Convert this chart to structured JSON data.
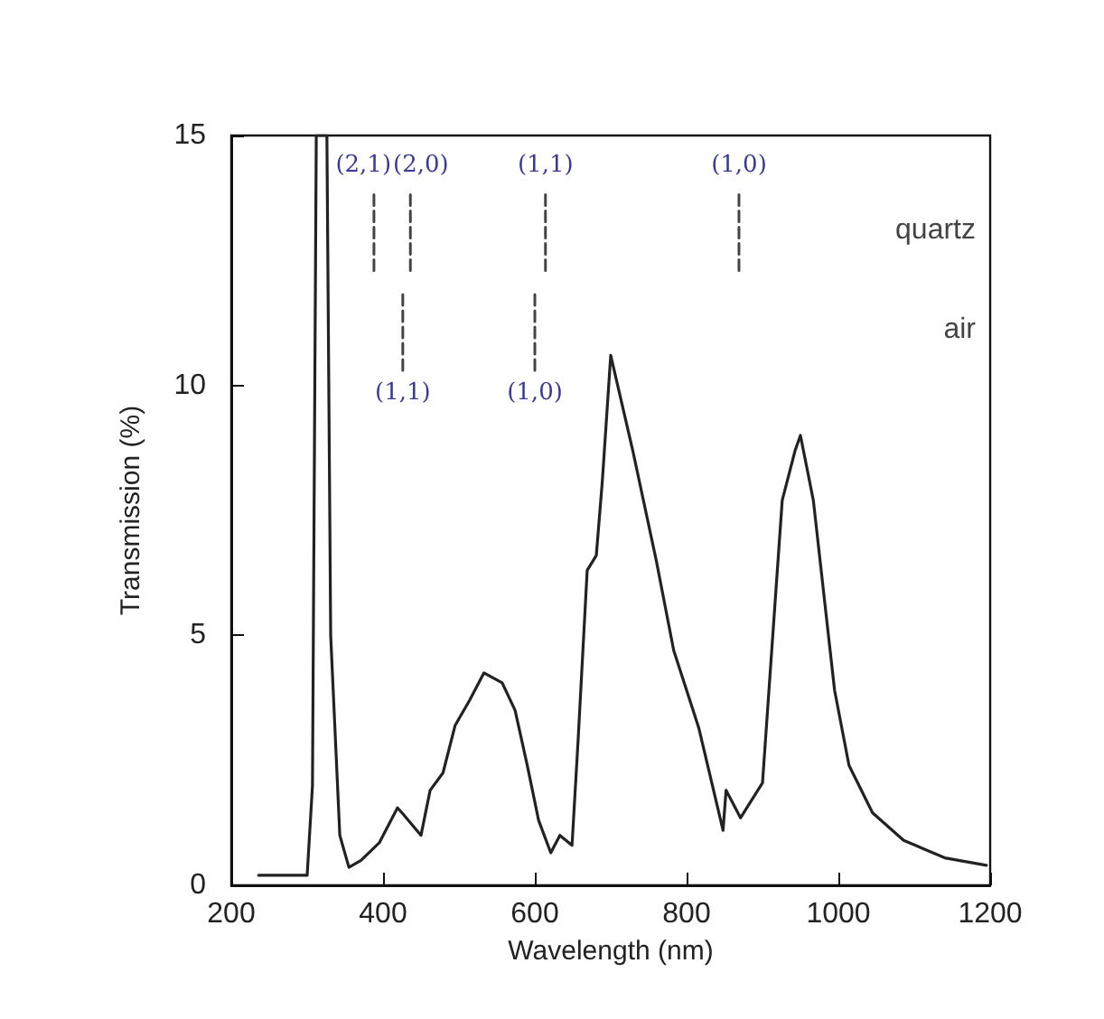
{
  "chart_data": {
    "type": "line",
    "xlabel": "Wavelength (nm)",
    "ylabel": "Transmission (%)",
    "xlim": [
      200,
      1200
    ],
    "xticks": [
      200,
      400,
      600,
      800,
      1000,
      1200
    ],
    "ylim": [
      0,
      15
    ],
    "yticks": [
      0,
      5,
      10,
      15
    ],
    "grid": false,
    "legend": false,
    "marker": "none",
    "series": [
      {
        "color": "#222222",
        "line_style": "solid",
        "x": [
          236,
          300,
          307,
          312,
          326,
          331,
          343,
          355,
          371,
          395,
          419,
          425,
          450,
          462,
          479,
          495,
          514,
          533,
          557,
          574,
          590,
          605,
          621,
          633,
          649,
          657,
          669,
          681,
          689,
          700,
          729,
          760,
          783,
          816,
          848,
          852,
          871,
          900,
          914,
          926,
          943,
          950,
          967,
          995,
          1014,
          1045,
          1086,
          1140,
          1195
        ],
        "values": [
          0.2,
          0.2,
          2,
          15,
          15,
          5,
          1.0,
          0.36,
          0.5,
          0.85,
          1.55,
          1.45,
          1.0,
          1.9,
          2.25,
          3.2,
          3.7,
          4.25,
          4.05,
          3.5,
          2.4,
          1.3,
          0.65,
          1.0,
          0.8,
          2.9,
          6.3,
          6.6,
          8.1,
          10.6,
          8.7,
          6.5,
          4.7,
          3.15,
          1.1,
          1.9,
          1.35,
          2.05,
          5.1,
          7.7,
          8.7,
          9.0,
          7.7,
          3.9,
          2.4,
          1.45,
          0.9,
          0.55,
          0.4
        ]
      },
      {
        "name": "quartz",
        "color": "#444444",
        "line_style": "dashed",
        "x": [
          388,
          388,
          412,
          436,
          436,
          525,
          614,
          614,
          740,
          869,
          869
        ],
        "values": [
          12.3,
          13.85,
          null,
          12.3,
          13.85,
          null,
          12.3,
          13.85,
          null,
          12.3,
          13.85
        ]
      },
      {
        "name": "air",
        "color": "#444444",
        "line_style": "dashed",
        "x": [
          426,
          426,
          513,
          600,
          600
        ],
        "values": [
          10.3,
          11.85,
          null,
          10.3,
          11.85
        ]
      }
    ],
    "annotations": [
      "(2,1)",
      "(2,0)",
      "(1,1)",
      "(1,0)",
      "(1,1)",
      "(1,0)"
    ]
  }
}
